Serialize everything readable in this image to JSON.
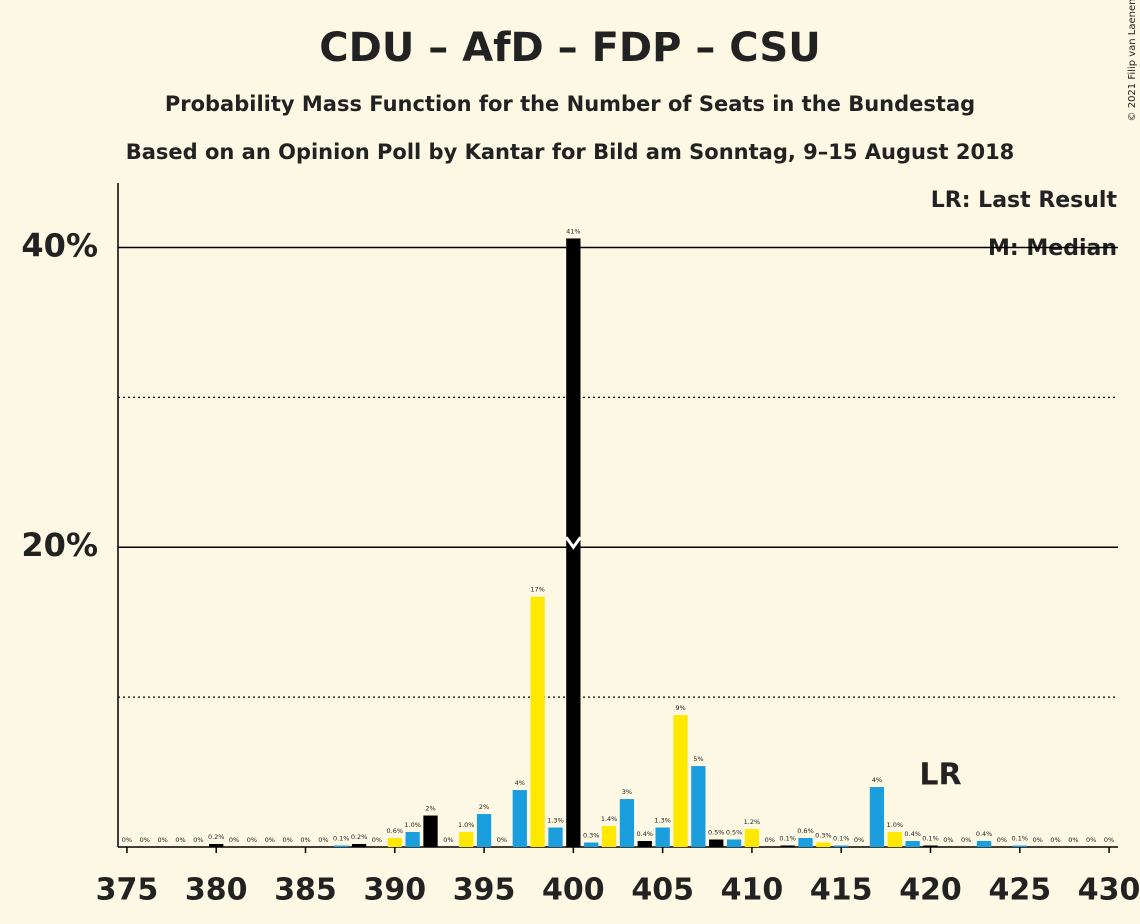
{
  "chart_data": {
    "type": "bar",
    "title": "CDU – AfD – FDP – CSU",
    "subtitle": "Probability Mass Function for the Number of Seats in the Bundestag",
    "subtitle2": "Based on an Opinion Poll by Kantar for Bild am Sonntag, 9–15 August 2018",
    "legend": [
      "LR: Last Result",
      "M: Median"
    ],
    "credit": "© 2021 Filip van Laenen",
    "last_result_label": "LR",
    "last_result": 420,
    "median": 400,
    "x": [
      375,
      376,
      377,
      378,
      379,
      380,
      381,
      382,
      383,
      384,
      385,
      386,
      387,
      388,
      389,
      390,
      391,
      392,
      393,
      394,
      395,
      396,
      397,
      398,
      399,
      400,
      401,
      402,
      403,
      404,
      405,
      406,
      407,
      408,
      409,
      410,
      411,
      412,
      413,
      414,
      415,
      416,
      417,
      418,
      419,
      420,
      421,
      422,
      423,
      424,
      425,
      426,
      427,
      428,
      429,
      430
    ],
    "values": [
      0,
      0,
      0,
      0,
      0,
      0.2,
      0,
      0,
      0,
      0,
      0,
      0,
      0.1,
      0.2,
      0,
      0.6,
      1.0,
      2.1,
      0,
      1.0,
      2.2,
      0,
      3.8,
      16.7,
      1.3,
      40.6,
      0.3,
      1.4,
      3.2,
      0.4,
      1.3,
      8.8,
      5.4,
      0.5,
      0.5,
      1.2,
      0,
      0.1,
      0.6,
      0.3,
      0.1,
      0,
      4.0,
      1.0,
      0.4,
      0.1,
      0,
      0,
      0.4,
      0,
      0.1,
      0,
      0,
      0,
      0,
      0
    ],
    "value_labels": [
      "0%",
      "0%",
      "0%",
      "0%",
      "0%",
      "0.2%",
      "0%",
      "0%",
      "0%",
      "0%",
      "0%",
      "0%",
      "0.1%",
      "0.2%",
      "0%",
      "0.6%",
      "1.0%",
      "2%",
      "0%",
      "1.0%",
      "2%",
      "0%",
      "4%",
      "17%",
      "1.3%",
      "41%",
      "0.3%",
      "1.4%",
      "3%",
      "0.4%",
      "1.3%",
      "9%",
      "5%",
      "0.5%",
      "0.5%",
      "1.2%",
      "0%",
      "0.1%",
      "0.6%",
      "0.3%",
      "0.1%",
      "0%",
      "4%",
      "1.0%",
      "0.4%",
      "0.1%",
      "0%",
      "0%",
      "0.4%",
      "0%",
      "0.1%",
      "0%",
      "0%",
      "0%",
      "0%",
      "0%"
    ],
    "colors": [
      "#1a9edd",
      "#000000",
      "#1a9edd",
      "#ffe800",
      "#1a9edd",
      "#000000",
      "#1a9edd",
      "#ffe800",
      "#1a9edd",
      "#000000",
      "#1a9edd",
      "#ffe800",
      "#1a9edd",
      "#000000",
      "#1a9edd",
      "#ffe800",
      "#1a9edd",
      "#000000",
      "#1a9edd",
      "#ffe800",
      "#1a9edd",
      "#000000",
      "#1a9edd",
      "#ffe800",
      "#1a9edd",
      "#000000",
      "#1a9edd",
      "#ffe800",
      "#1a9edd",
      "#000000",
      "#1a9edd",
      "#ffe800",
      "#1a9edd",
      "#000000",
      "#1a9edd",
      "#ffe800",
      "#1a9edd",
      "#000000",
      "#1a9edd",
      "#ffe800",
      "#1a9edd",
      "#000000",
      "#1a9edd",
      "#ffe800",
      "#1a9edd",
      "#000000",
      "#1a9edd",
      "#ffe800",
      "#1a9edd",
      "#000000",
      "#1a9edd",
      "#ffe800",
      "#1a9edd",
      "#000000",
      "#1a9edd",
      "#ffe800"
    ],
    "xlim": [
      374.5,
      430.5
    ],
    "xticks": [
      375,
      380,
      385,
      390,
      395,
      400,
      405,
      410,
      415,
      420,
      425,
      430
    ],
    "ylim": [
      0,
      44.3
    ],
    "yticks": [
      {
        "value": 20,
        "label": "20%"
      },
      {
        "value": 40,
        "label": "40%"
      }
    ],
    "minor_yticks": [
      10,
      30
    ],
    "grid": true
  }
}
